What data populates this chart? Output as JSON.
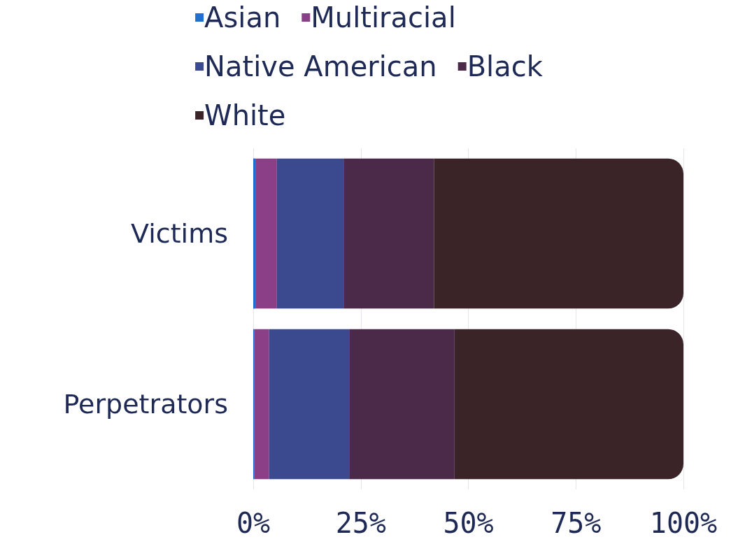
{
  "chart_data": {
    "type": "bar",
    "orientation": "horizontal",
    "stacked": true,
    "categories": [
      "Victims",
      "Perpetrators"
    ],
    "series": [
      {
        "name": "Asian",
        "color": "#1f6fd0",
        "values": [
          0.5,
          0.3
        ]
      },
      {
        "name": "Multiracial",
        "color": "#8a3f86",
        "values": [
          5,
          3.4
        ]
      },
      {
        "name": "Native American",
        "color": "#3b4a8e",
        "values": [
          15.5,
          18.6
        ]
      },
      {
        "name": "Black",
        "color": "#4a2a48",
        "values": [
          21,
          24.5
        ]
      },
      {
        "name": "White",
        "color": "#3a2428",
        "values": [
          58,
          53.2
        ]
      }
    ],
    "xlim": [
      0,
      100
    ],
    "xticks": [
      {
        "value": 0,
        "label": "0%"
      },
      {
        "value": 25,
        "label": "25%"
      },
      {
        "value": 50,
        "label": "50%"
      },
      {
        "value": 75,
        "label": "75%"
      },
      {
        "value": 100,
        "label": "100%"
      }
    ],
    "grid": "x",
    "legend": "top"
  }
}
